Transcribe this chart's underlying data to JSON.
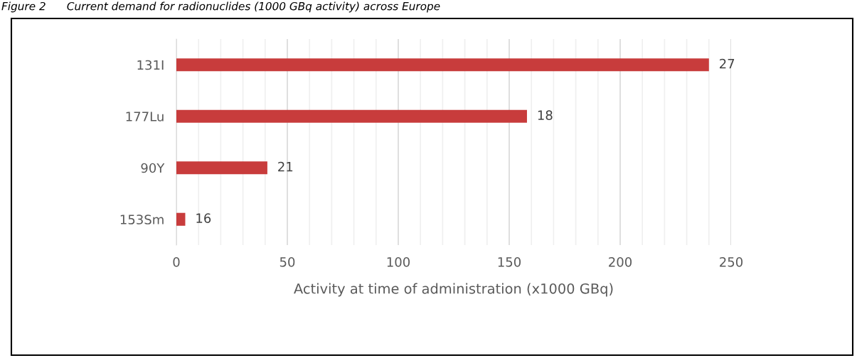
{
  "chart_data": {
    "type": "bar",
    "orientation": "horizontal",
    "title": "Figure 2      Current demand for radionuclides (1000 GBq activity) across Europe",
    "xlabel": "Activity at time of administration (x1000 GBq)",
    "categories": [
      "131I",
      "177Lu",
      "90Y",
      "153Sm"
    ],
    "series": [
      {
        "color": "#c83c3c",
        "values": [
          240,
          158,
          41,
          4
        ]
      }
    ],
    "annotations": [
      {
        "text": "27",
        "x": 240,
        "y": "131I"
      },
      {
        "text": "18",
        "x": 158,
        "y": "177Lu"
      },
      {
        "text": "21",
        "x": 41,
        "y": "90Y"
      },
      {
        "text": "16",
        "x": 4,
        "y": "153Sm"
      }
    ],
    "xlim": [
      0,
      250
    ],
    "xticks": [
      0,
      {
        "value": 10,
        "label": null
      },
      {
        "value": 20,
        "label": null
      },
      {
        "value": 30,
        "label": null
      },
      {
        "value": 40,
        "label": null
      },
      50,
      {
        "value": 60,
        "label": null
      },
      {
        "value": 70,
        "label": null
      },
      {
        "value": 80,
        "label": null
      },
      {
        "value": 90,
        "label": null
      },
      100,
      {
        "value": 110,
        "label": null
      },
      {
        "value": 120,
        "label": null
      },
      {
        "value": 130,
        "label": null
      },
      {
        "value": 140,
        "label": null
      },
      150,
      {
        "value": 160,
        "label": null
      },
      {
        "value": 170,
        "label": null
      },
      {
        "value": 180,
        "label": null
      },
      {
        "value": 190,
        "label": null
      },
      200,
      {
        "value": 210,
        "label": null
      },
      {
        "value": 220,
        "label": null
      },
      {
        "value": 230,
        "label": null
      },
      {
        "value": 240,
        "label": null
      },
      250
    ],
    "grid": "x",
    "legend": false
  }
}
